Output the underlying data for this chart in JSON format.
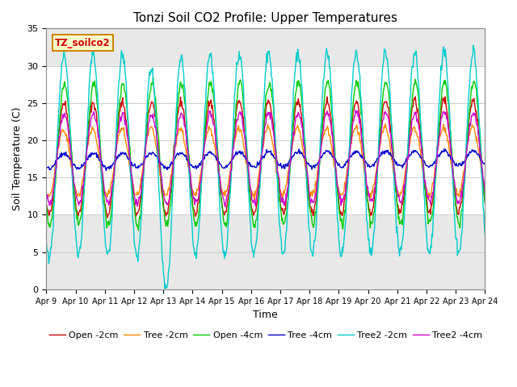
{
  "title": "Tonzi Soil CO2 Profile: Upper Temperatures",
  "xlabel": "Time",
  "ylabel": "Soil Temperature (C)",
  "ylim": [
    0,
    35
  ],
  "xlim": [
    0,
    15
  ],
  "x_tick_labels": [
    "Apr 9",
    "Apr 10",
    "Apr 11",
    "Apr 12",
    "Apr 13",
    "Apr 14",
    "Apr 15",
    "Apr 16",
    "Apr 17",
    "Apr 18",
    "Apr 19",
    "Apr 20",
    "Apr 21",
    "Apr 22",
    "Apr 23",
    "Apr 24"
  ],
  "legend_label": "TZ_soilco2",
  "series_names": [
    "Open -2cm",
    "Tree -2cm",
    "Open -4cm",
    "Tree -4cm",
    "Tree2 -2cm",
    "Tree2 -4cm"
  ],
  "series_colors": [
    "#cc0000",
    "#ff8800",
    "#00cc00",
    "#0000cc",
    "#00cccc",
    "#cc00cc"
  ],
  "grey_band_color": "#d8d8d8",
  "white_band_color": "#ffffff",
  "plot_bg_color": "#e8e8e8",
  "title_fontsize": 11,
  "label_fontsize": 9,
  "tick_fontsize": 8,
  "legend_fontsize": 8
}
